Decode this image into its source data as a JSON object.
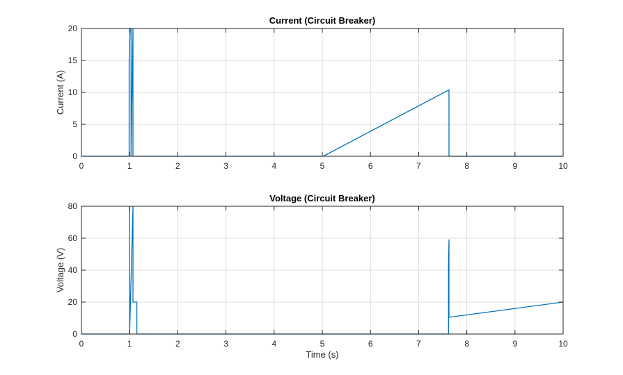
{
  "chart_data": [
    {
      "type": "line",
      "title": "Current (Circuit Breaker)",
      "xlabel": "",
      "ylabel": "Current (A)",
      "xlim": [
        0,
        10
      ],
      "ylim": [
        0,
        20
      ],
      "xticks": [
        0,
        1,
        2,
        3,
        4,
        5,
        6,
        7,
        8,
        9,
        10
      ],
      "yticks": [
        0,
        5,
        10,
        15,
        20
      ],
      "grid": true,
      "color": "#0072BD",
      "series": [
        {
          "x": [
            0,
            0.99,
            0.99,
            1.01,
            1.03,
            1.03,
            1.07,
            1.07,
            5.02,
            7.63,
            7.63,
            10
          ],
          "y": [
            0,
            0,
            15,
            20,
            20,
            0,
            20,
            0,
            0,
            10.4,
            0,
            0
          ]
        }
      ]
    },
    {
      "type": "line",
      "title": "Voltage (Circuit Breaker)",
      "xlabel": "Time (s)",
      "ylabel": "Voltage (V)",
      "xlim": [
        0,
        10
      ],
      "ylim": [
        0,
        80
      ],
      "xticks": [
        0,
        1,
        2,
        3,
        4,
        5,
        6,
        7,
        8,
        9,
        10
      ],
      "yticks": [
        0,
        20,
        40,
        60,
        80
      ],
      "grid": true,
      "color": "#0072BD",
      "series": [
        {
          "x": [
            0,
            1.0,
            1.0,
            1.0,
            1.07,
            1.07,
            1.08,
            1.08,
            1.15,
            1.15,
            7.62,
            7.62,
            7.63,
            7.63,
            10
          ],
          "y": [
            0,
            0,
            80,
            0,
            80,
            20,
            20,
            20,
            20,
            0,
            0,
            42,
            59,
            10.5,
            20
          ]
        }
      ]
    }
  ]
}
